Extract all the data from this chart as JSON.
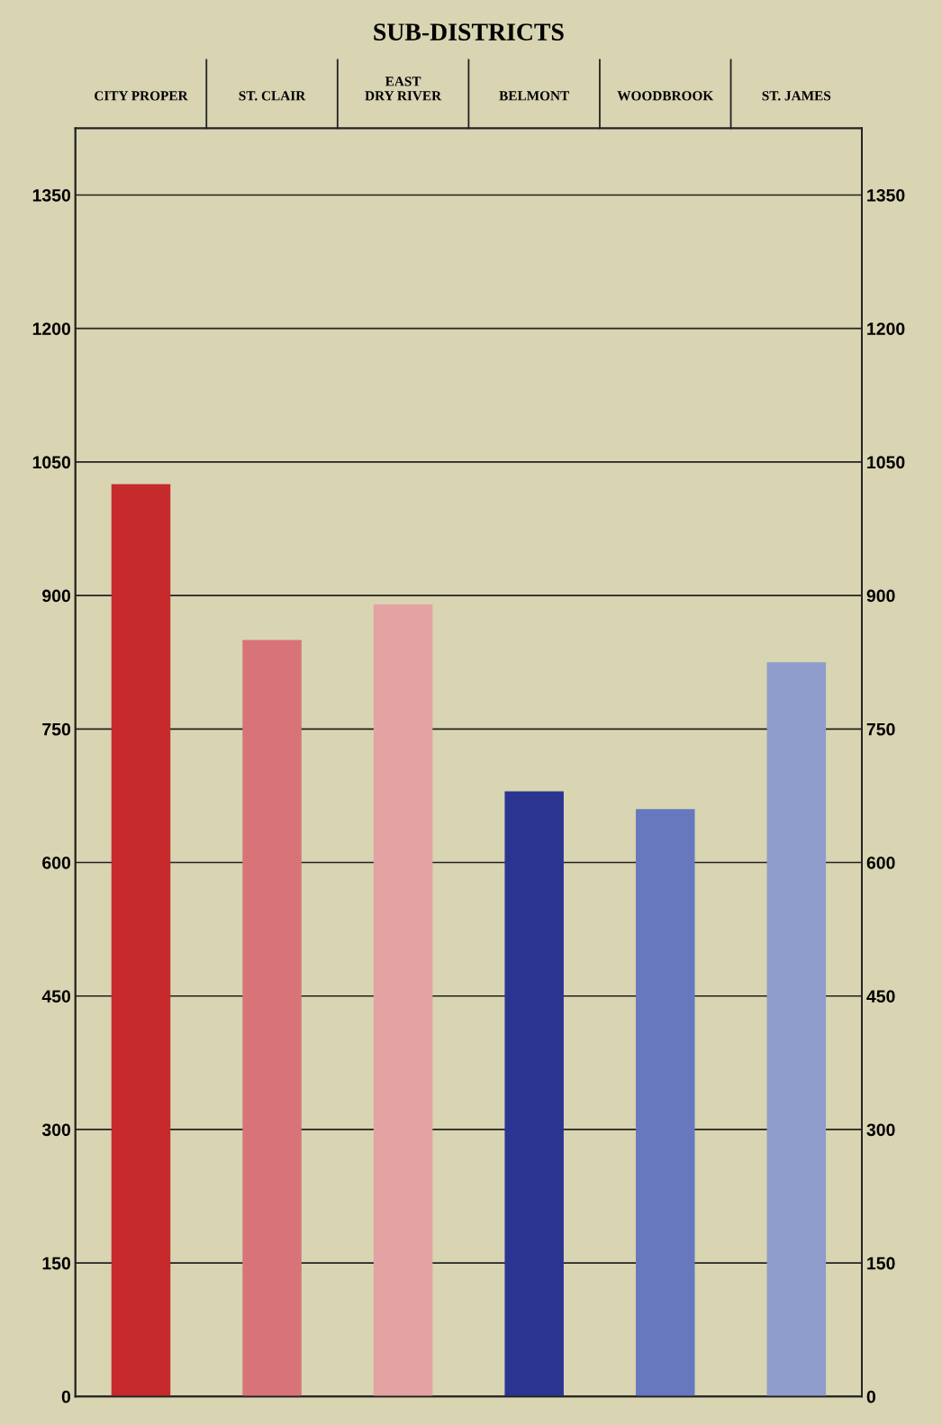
{
  "chart_data": {
    "type": "bar",
    "title": "SUB-DISTRICTS",
    "categories": [
      "CITY PROPER",
      "ST. CLAIR",
      "EAST\nDRY RIVER",
      "BELMONT",
      "WOODBROOK",
      "ST. JAMES"
    ],
    "values": [
      1025,
      850,
      890,
      680,
      660,
      825
    ],
    "colors": [
      "#c62a2c",
      "#d9737a",
      "#e3a3a3",
      "#2a3592",
      "#6878bf",
      "#8e9dcc"
    ],
    "ylim": [
      0,
      1425
    ],
    "yticks": [
      0,
      150,
      300,
      450,
      600,
      750,
      900,
      1050,
      1200,
      1350
    ],
    "y2lim": [
      0,
      1425
    ],
    "y2ticks": [
      0,
      150,
      300,
      450,
      600,
      750,
      900,
      1050,
      1200,
      1350
    ],
    "grid": true
  }
}
